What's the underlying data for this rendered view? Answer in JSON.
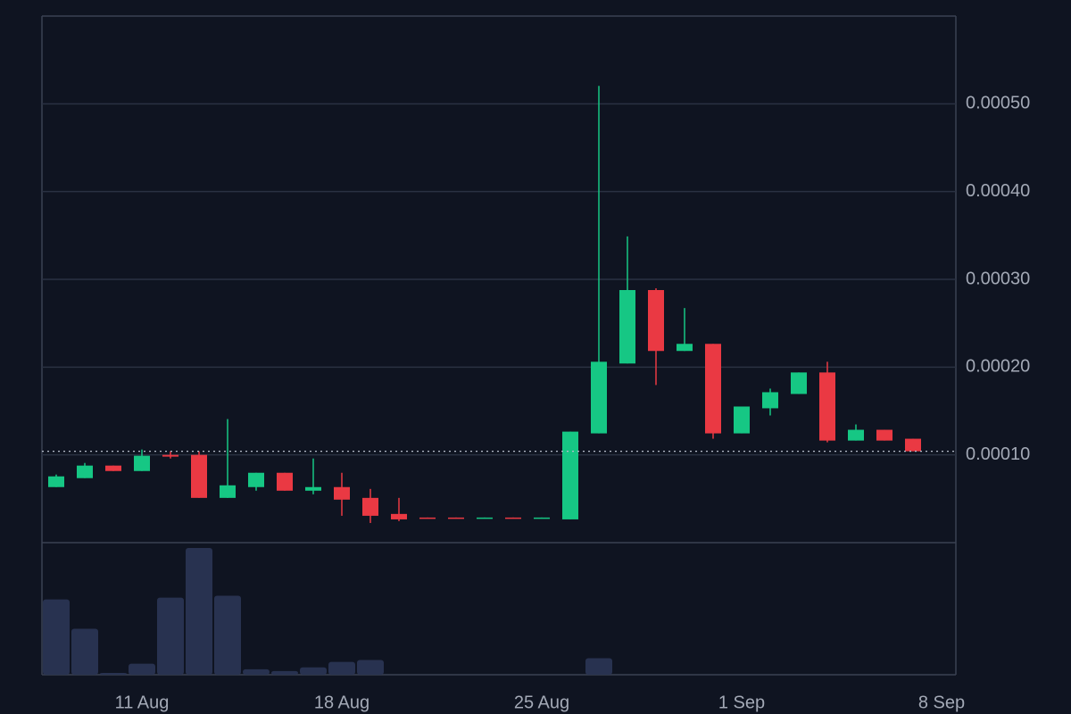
{
  "chart_data": {
    "type": "candlestick",
    "categories": [
      null,
      null,
      null,
      "11 Aug",
      null,
      null,
      null,
      null,
      null,
      null,
      "18 Aug",
      null,
      null,
      null,
      null,
      null,
      null,
      "25 Aug",
      null,
      null,
      null,
      null,
      null,
      null,
      "1 Sep",
      null,
      null,
      null,
      null,
      null,
      null,
      "8 Sep"
    ],
    "open": [
      6.33e-05,
      7.35e-05,
      8.78e-05,
      8.16e-05,
      0.0001,
      0.0001,
      5.1e-05,
      6.33e-05,
      7.96e-05,
      5.92e-05,
      6.33e-05,
      5.1e-05,
      3.27e-05,
      2.86e-05,
      2.86e-05,
      2.76e-05,
      2.86e-05,
      2.76e-05,
      2.65e-05,
      0.0001245,
      0.0002041,
      0.0002878,
      0.0002184,
      0.0002265,
      0.0001245,
      0.0001531,
      0.0001694,
      0.0001939,
      0.0001163,
      0.0001286,
      0.0001184,
      null
    ],
    "high": [
      7.76e-05,
      9.08e-05,
      8.78e-05,
      0.0001061,
      0.0001041,
      0.0001041,
      0.0001408,
      7.96e-05,
      7.96e-05,
      9.59e-05,
      7.96e-05,
      6.12e-05,
      5.1e-05,
      2.86e-05,
      2.86e-05,
      2.86e-05,
      2.86e-05,
      2.86e-05,
      0.0001265,
      0.0005204,
      0.000349,
      0.0002898,
      0.0002673,
      0.0002265,
      0.0001551,
      0.0001755,
      0.0001939,
      0.0002061,
      0.0001347,
      0.0001286,
      0.0001184,
      null
    ],
    "low": [
      6.33e-05,
      7.35e-05,
      8.16e-05,
      8.16e-05,
      9.59e-05,
      5.1e-05,
      5.1e-05,
      5.92e-05,
      5.92e-05,
      5.51e-05,
      3.06e-05,
      2.24e-05,
      2.45e-05,
      2.76e-05,
      2.76e-05,
      2.76e-05,
      2.76e-05,
      2.76e-05,
      2.65e-05,
      0.0001245,
      0.0002041,
      0.0001796,
      0.0002184,
      0.0001184,
      0.0001245,
      0.0001449,
      0.0001694,
      0.0001143,
      0.0001163,
      0.0001163,
      0.0001041,
      null
    ],
    "close": [
      7.55e-05,
      8.78e-05,
      8.16e-05,
      9.9e-05,
      9.8e-05,
      5.1e-05,
      6.53e-05,
      7.96e-05,
      5.92e-05,
      6.33e-05,
      4.9e-05,
      3.06e-05,
      2.65e-05,
      2.76e-05,
      2.76e-05,
      2.86e-05,
      2.76e-05,
      2.86e-05,
      0.0001265,
      0.0002061,
      0.0002878,
      0.0002184,
      0.0002265,
      0.0001245,
      0.0001551,
      0.0001714,
      0.0001939,
      0.0001163,
      0.0001286,
      0.0001163,
      0.0001041,
      null
    ],
    "volume": [
      82,
      50,
      2,
      12,
      84,
      138,
      86,
      6,
      4,
      8,
      14,
      16,
      0,
      0,
      0,
      0,
      0,
      0,
      0,
      18,
      0,
      0,
      0,
      0,
      0,
      0,
      0,
      0,
      0,
      0,
      0,
      null
    ],
    "up_color": "#16c784",
    "down_color": "#ea3943",
    "volume_color": "#283250",
    "ylim": [
      0,
      0.0006
    ],
    "yticks": [
      {
        "value": 0.0001,
        "label": "0.00010"
      },
      {
        "value": 0.0002,
        "label": "0.00020"
      },
      {
        "value": 0.0003,
        "label": "0.00030"
      },
      {
        "value": 0.0004,
        "label": "0.00040"
      },
      {
        "value": 0.0005,
        "label": "0.00050"
      }
    ],
    "grid": true
  }
}
